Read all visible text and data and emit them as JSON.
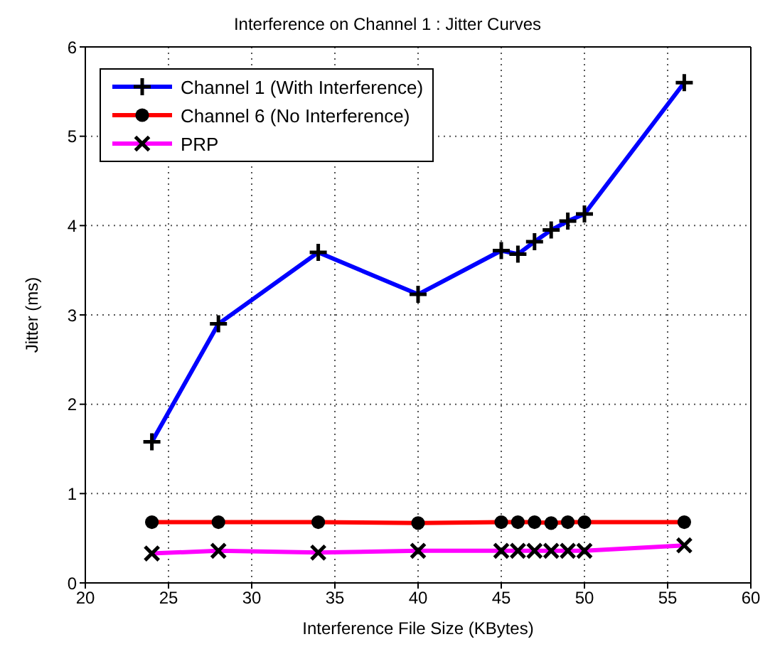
{
  "chart_data": {
    "type": "line",
    "title": "Interference on Channel 1 : Jitter Curves",
    "xlabel": "Interference File Size (KBytes)",
    "ylabel": "Jitter (ms)",
    "x": [
      24,
      28,
      34,
      40,
      45,
      46,
      47,
      48,
      49,
      50,
      56
    ],
    "series": [
      {
        "name": "Channel 1 (With Interference)",
        "color": "#0000ff",
        "marker": "cross",
        "values": [
          1.58,
          2.9,
          3.7,
          3.23,
          3.72,
          3.68,
          3.82,
          3.95,
          4.05,
          4.13,
          5.6
        ]
      },
      {
        "name": "Channel 6 (No Interference)",
        "color": "#ff0000",
        "marker": "circle",
        "values": [
          0.68,
          0.68,
          0.68,
          0.67,
          0.68,
          0.68,
          0.68,
          0.67,
          0.68,
          0.68,
          0.68
        ]
      },
      {
        "name": "PRP",
        "color": "#ff00ff",
        "marker": "x",
        "values": [
          0.33,
          0.36,
          0.34,
          0.36,
          0.36,
          0.36,
          0.36,
          0.36,
          0.36,
          0.36,
          0.42
        ]
      }
    ],
    "xlim": [
      20,
      60
    ],
    "xticks": [
      20,
      25,
      30,
      35,
      40,
      45,
      50,
      55,
      60
    ],
    "ylim": [
      0,
      6
    ],
    "yticks": [
      0,
      1,
      2,
      3,
      4,
      5,
      6
    ],
    "grid": true,
    "legend": "top left",
    "line_style": "solid"
  }
}
